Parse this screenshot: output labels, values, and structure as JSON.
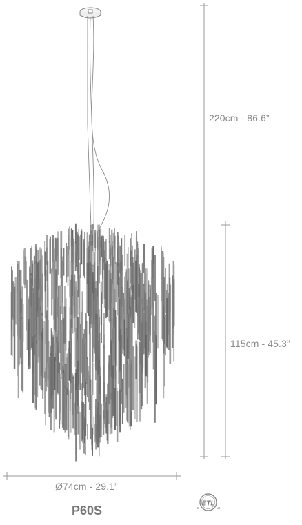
{
  "product": {
    "model": "P60S"
  },
  "dimensions": {
    "total_height": "220cm - 86.6”",
    "body_height": "115cm - 45.3”",
    "diameter": "Ø74cm - 29.1”"
  },
  "certification": {
    "mark": "ETL",
    "left_letter": "c",
    "right_letter": "us",
    "icon": "etl-listed-mark-icon"
  },
  "colors": {
    "line": "#9a9a9a",
    "fixture": "#7a7a7a",
    "text": "#8c8c8c"
  }
}
